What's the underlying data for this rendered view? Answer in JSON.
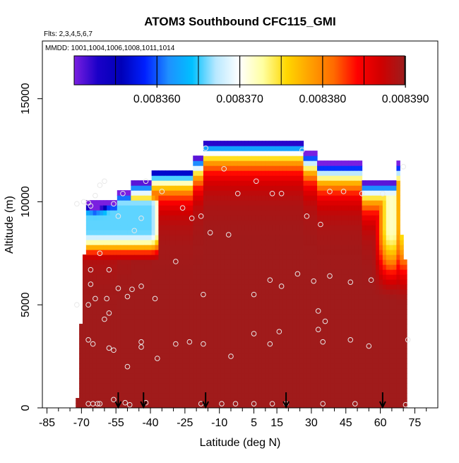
{
  "chart_data": {
    "type": "heatmap",
    "title": "ATOM3 Southbound CFC115_GMI",
    "flights_label": "Flts: 2,3,4,5,6,7",
    "mmdd_label": "MMDD: 1001,1004,1006,1008,1011,1014",
    "xlabel": "Latitude (deg N)",
    "ylabel": "Altitude (m)",
    "xlim": [
      -87,
      85
    ],
    "ylim": [
      0,
      17800
    ],
    "x_ticks": [
      -85,
      -70,
      -55,
      -40,
      -25,
      -10,
      5,
      15,
      30,
      45,
      60,
      75
    ],
    "x_tick_labels": [
      "-85",
      "-70",
      "-55",
      "-40",
      "-25",
      "-10",
      "5",
      "15",
      "30",
      "45",
      "60",
      "75"
    ],
    "x_minor_ticks": [
      -80,
      -75,
      -65,
      -60,
      -50,
      -45,
      -35,
      -30,
      -20,
      -15,
      -5,
      0,
      10,
      20,
      25,
      35,
      40,
      50,
      55,
      65,
      70,
      80
    ],
    "y_ticks": [
      0,
      5000,
      10000,
      15000
    ],
    "y_tick_labels": [
      "0",
      "5000",
      "10000",
      "15000"
    ],
    "colorbar": {
      "min": 0.00835,
      "max": 0.0083899,
      "ticks": [
        0.00836,
        0.00837,
        0.00838,
        0.00839
      ],
      "tick_labels": [
        "0.008360",
        "0.008370",
        "0.008380",
        "0.008390"
      ],
      "colors": [
        "#7a1fe0",
        "#1a00c8",
        "#0000b8",
        "#0020ff",
        "#1e90ff",
        "#00c0ff",
        "#b8e8ff",
        "#ffffff",
        "#ffffa0",
        "#ffd700",
        "#ffa000",
        "#ff6a00",
        "#ff0000",
        "#d00000",
        "#9c1d1d"
      ]
    },
    "flight_markers_lat": [
      -54,
      -43,
      -16,
      19,
      61
    ],
    "sample_points": [
      [
        -67,
        200
      ],
      [
        -65,
        200
      ],
      [
        -63,
        200
      ],
      [
        -62,
        200
      ],
      [
        -56,
        400
      ],
      [
        -51,
        250
      ],
      [
        -49,
        150
      ],
      [
        -42,
        250
      ],
      [
        -18,
        200
      ],
      [
        -9,
        200
      ],
      [
        -3,
        200
      ],
      [
        5,
        200
      ],
      [
        13,
        200
      ],
      [
        19,
        200
      ],
      [
        35,
        200
      ],
      [
        49,
        200
      ],
      [
        71,
        150
      ],
      [
        -67,
        3300
      ],
      [
        -65,
        3100
      ],
      [
        -58,
        2900
      ],
      [
        -56,
        2800
      ],
      [
        -50,
        2000
      ],
      [
        -44,
        3200
      ],
      [
        -44,
        2950
      ],
      [
        -37,
        2400
      ],
      [
        -29,
        3100
      ],
      [
        -23,
        3200
      ],
      [
        -17,
        3100
      ],
      [
        -5,
        2500
      ],
      [
        5,
        3600
      ],
      [
        12,
        3100
      ],
      [
        16,
        3700
      ],
      [
        33,
        3800
      ],
      [
        35,
        3200
      ],
      [
        47,
        3300
      ],
      [
        55,
        3000
      ],
      [
        72,
        3300
      ],
      [
        -72,
        5000
      ],
      [
        -67,
        5000
      ],
      [
        -64,
        5300
      ],
      [
        -60,
        4300
      ],
      [
        -58,
        4600
      ],
      [
        -59,
        5300
      ],
      [
        -54,
        5800
      ],
      [
        -50,
        5400
      ],
      [
        -48,
        5750
      ],
      [
        -44,
        5900
      ],
      [
        -38,
        5300
      ],
      [
        -17,
        5500
      ],
      [
        5,
        5500
      ],
      [
        12,
        6200
      ],
      [
        17,
        5900
      ],
      [
        24,
        6500
      ],
      [
        31,
        6150
      ],
      [
        33,
        4700
      ],
      [
        36,
        4200
      ],
      [
        38,
        6400
      ],
      [
        47,
        6100
      ],
      [
        56,
        6200
      ],
      [
        -66,
        6000
      ],
      [
        -66,
        6700
      ],
      [
        -62,
        7500
      ],
      [
        -58,
        6700
      ],
      [
        -29,
        7100
      ],
      [
        -14,
        8500
      ],
      [
        -6,
        8400
      ],
      [
        -72,
        9900
      ],
      [
        -69,
        10000
      ],
      [
        -67,
        9950
      ],
      [
        -66,
        9800
      ],
      [
        -64,
        10300
      ],
      [
        -62,
        10800
      ],
      [
        -60,
        11000
      ],
      [
        -56,
        9900
      ],
      [
        -54,
        9300
      ],
      [
        -52,
        10400
      ],
      [
        -47,
        8600
      ],
      [
        -44,
        9200
      ],
      [
        -42,
        11000
      ],
      [
        -35,
        10500
      ],
      [
        -26,
        9700
      ],
      [
        -22,
        9200
      ],
      [
        -18,
        9300
      ],
      [
        -16,
        12600
      ],
      [
        -8,
        11600
      ],
      [
        -2,
        10400
      ],
      [
        6,
        11000
      ],
      [
        13,
        10400
      ],
      [
        17,
        10400
      ],
      [
        28,
        9300
      ],
      [
        34,
        8900
      ],
      [
        38,
        10500
      ],
      [
        44,
        10500
      ],
      [
        52,
        10400
      ],
      [
        61,
        10400
      ],
      [
        70,
        11700
      ],
      [
        26,
        12500
      ]
    ]
  }
}
